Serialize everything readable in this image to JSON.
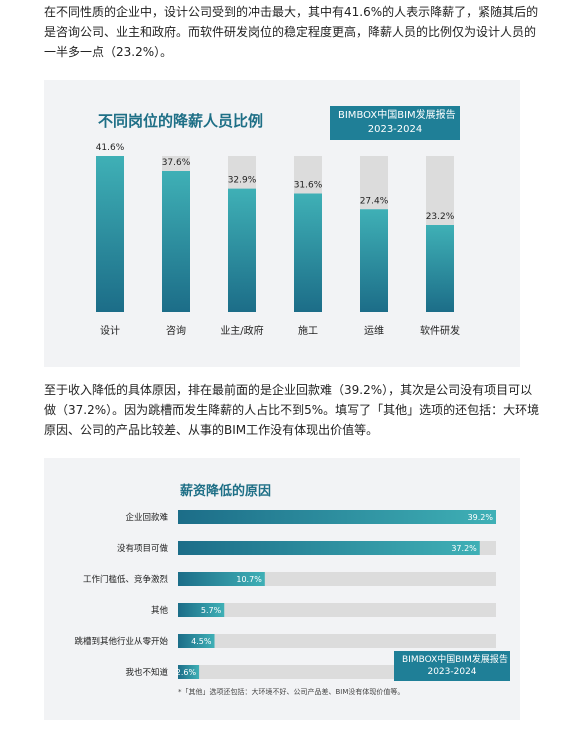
{
  "intro_text": "在不同性质的企业中，设计公司受到的冲击最大，其中有41.6%的人表示降薪了，紧随其后的是咨询公司、业主和政府。而软件研发岗位的稳定程度更高，降薪人员的比例仅为设计人员的一半多一点（23.2%）。",
  "middle_text": "至于收入降低的具体原因，排在最前面的是企业回款难（39.2%），其次是公司没有项目可以做（37.2%）。因为跳槽而发生降薪的人占比不到5%。填写了「其他」选项的还包括：大环境原因、公司的产品比较差、从事的BIM工作没有体现出价值等。",
  "report_badge": {
    "line1": "BIMBOX中国BIM发展报告",
    "line2": "2023-2024"
  },
  "colors": {
    "bar_gradient_top": "#3fb0b6",
    "bar_gradient_bottom": "#1c6d88",
    "track": "#dcdcdc",
    "title": "#1e6f86",
    "badge": "#1f7f97",
    "panel": "#f2f3f5"
  },
  "chart_data": [
    {
      "type": "bar",
      "title": "不同岗位的降薪人员比例",
      "categories": [
        "设计",
        "咨询",
        "业主/政府",
        "施工",
        "运维",
        "软件研发"
      ],
      "values": [
        41.6,
        37.6,
        32.9,
        31.6,
        27.4,
        23.2
      ],
      "value_labels": [
        "41.6%",
        "37.6%",
        "32.9%",
        "31.6%",
        "27.4%",
        "23.2%"
      ],
      "ylim": [
        0,
        41.6
      ],
      "grid": false,
      "legend": "none"
    },
    {
      "type": "bar",
      "orientation": "horizontal",
      "title": "薪资降低的原因",
      "categories": [
        "企业回款难",
        "没有项目可做",
        "工作门槛低、竞争激烈",
        "其他",
        "跳槽到其他行业从零开始",
        "我也不知道"
      ],
      "values": [
        39.2,
        37.2,
        10.7,
        5.7,
        4.5,
        2.6
      ],
      "value_labels": [
        "39.2%",
        "37.2%",
        "10.7%",
        "5.7%",
        "4.5%",
        "2.6%"
      ],
      "xlim": [
        0,
        39.2
      ],
      "grid": false,
      "legend": "none",
      "footnote": "*「其他」选项还包括：大环境不好、公司产品差、BIM没有体现价值等。"
    }
  ]
}
